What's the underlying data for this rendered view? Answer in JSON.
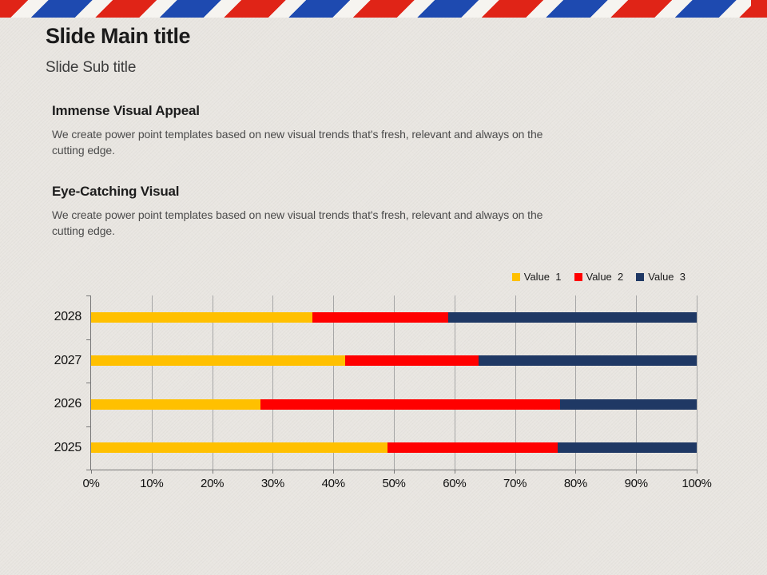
{
  "slide": {
    "title": "Slide Main title",
    "subtitle": "Slide Sub title",
    "sections": [
      {
        "heading": "Immense Visual Appeal",
        "body": "We create power point templates based on new visual trends that's fresh, relevant and always on the cutting edge."
      },
      {
        "heading": "Eye-Catching Visual",
        "body": "We create power point templates based on new visual trends that's fresh, relevant and always on the cutting edge."
      }
    ]
  },
  "colors": {
    "background": "#e9e6e1",
    "stripe_red": "#e02417",
    "stripe_blue": "#1e4ab0",
    "stripe_gap": "#f6f4f0",
    "grid": "#a6a6a6",
    "axis": "#787878",
    "series1": "#ffc000",
    "series2": "#ff0000",
    "series3": "#1f3864"
  },
  "chart_data": {
    "type": "bar",
    "orientation": "horizontal",
    "stacked": true,
    "title": "",
    "xlabel": "",
    "ylabel": "",
    "xlim": [
      0,
      100
    ],
    "grid": true,
    "legend_position": "top-right",
    "categories": [
      "2028",
      "2027",
      "2026",
      "2025"
    ],
    "series": [
      {
        "name": "Value  1",
        "color": "#ffc000",
        "values": [
          36.5,
          42,
          28,
          49
        ]
      },
      {
        "name": "Value  2",
        "color": "#ff0000",
        "values": [
          22.5,
          22,
          49.5,
          28
        ]
      },
      {
        "name": "Value  3",
        "color": "#1f3864",
        "values": [
          41,
          36,
          22.5,
          23
        ]
      }
    ],
    "x_ticks": [
      "0%",
      "10%",
      "20%",
      "30%",
      "40%",
      "50%",
      "60%",
      "70%",
      "80%",
      "90%",
      "100%"
    ]
  }
}
